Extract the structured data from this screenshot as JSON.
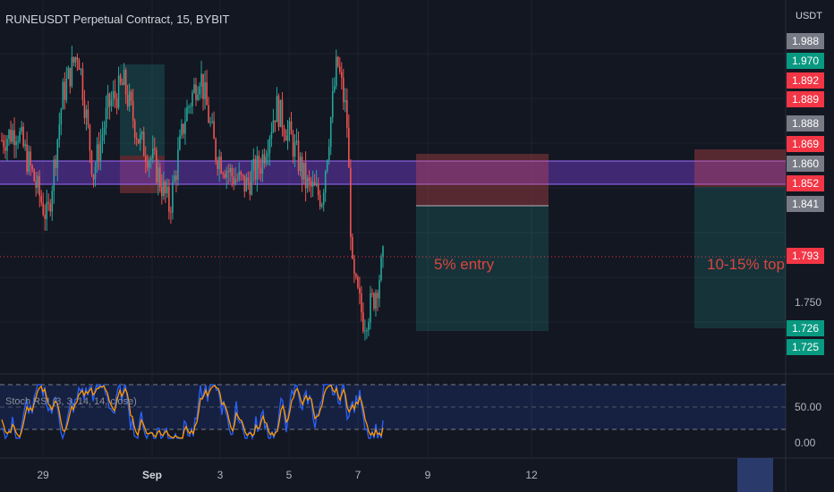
{
  "header": {
    "title": "RUNEUSDT Perpetual Contract, 15, BYBIT",
    "currency": "USDT"
  },
  "stoch": {
    "label": "Stoch RSI (3, 3, 14, 14, close)",
    "levels": [
      80,
      20
    ],
    "ticks": [
      "50.00",
      "0.00"
    ]
  },
  "price_tags": [
    {
      "value": "1.988",
      "color": "#787b86"
    },
    {
      "value": "1.970",
      "color": "#089981"
    },
    {
      "value": "1.892",
      "color": "#f23645"
    },
    {
      "value": "1.889",
      "color": "#f23645"
    },
    {
      "value": "1.888",
      "color": "#787b86"
    },
    {
      "value": "1.869",
      "color": "#f23645"
    },
    {
      "value": "1.860",
      "color": "#787b86"
    },
    {
      "value": "1.852",
      "color": "#f23645"
    },
    {
      "value": "1.841",
      "color": "#787b86"
    },
    {
      "value": "1.793",
      "color": "#f23645"
    },
    {
      "value": "1.726",
      "color": "#089981"
    },
    {
      "value": "1.725",
      "color": "#089981"
    }
  ],
  "y_ticks": [
    "1.750"
  ],
  "annotations": {
    "entry": "5% entry",
    "top": "10-15% top"
  },
  "colors": {
    "up": "#26a69a",
    "down": "#ef5350",
    "zone": "#7b3fd8",
    "stoch_k": "#2962ff",
    "stoch_d": "#ff9800"
  },
  "chart_data": {
    "type": "candlestick",
    "symbol": "RUNEUSDT",
    "timeframe": "15",
    "x_ticks": [
      "29",
      "Sep",
      "3",
      "5",
      "7",
      "9",
      "12"
    ],
    "ylim": [
      1.7,
      2.0
    ],
    "last_price": 1.793,
    "horizontal_zone": [
      1.841,
      1.869
    ],
    "trend": [
      {
        "t": 0,
        "p": 1.9
      },
      {
        "t": 0.04,
        "p": 1.91
      },
      {
        "t": 0.07,
        "p": 1.88
      },
      {
        "t": 0.12,
        "p": 1.83
      },
      {
        "t": 0.16,
        "p": 1.94
      },
      {
        "t": 0.2,
        "p": 1.98
      },
      {
        "t": 0.24,
        "p": 1.87
      },
      {
        "t": 0.28,
        "p": 1.93
      },
      {
        "t": 0.32,
        "p": 1.95
      },
      {
        "t": 0.36,
        "p": 1.9
      },
      {
        "t": 0.4,
        "p": 1.88
      },
      {
        "t": 0.44,
        "p": 1.84
      },
      {
        "t": 0.48,
        "p": 1.92
      },
      {
        "t": 0.52,
        "p": 1.96
      },
      {
        "t": 0.56,
        "p": 1.89
      },
      {
        "t": 0.6,
        "p": 1.87
      },
      {
        "t": 0.64,
        "p": 1.86
      },
      {
        "t": 0.68,
        "p": 1.88
      },
      {
        "t": 0.72,
        "p": 1.93
      },
      {
        "t": 0.76,
        "p": 1.9
      },
      {
        "t": 0.8,
        "p": 1.86
      },
      {
        "t": 0.84,
        "p": 1.85
      },
      {
        "t": 0.88,
        "p": 1.97
      },
      {
        "t": 0.905,
        "p": 1.92
      },
      {
        "t": 0.92,
        "p": 1.78
      },
      {
        "t": 0.95,
        "p": 1.74
      },
      {
        "t": 0.975,
        "p": 1.76
      },
      {
        "t": 1.0,
        "p": 1.793
      }
    ]
  }
}
